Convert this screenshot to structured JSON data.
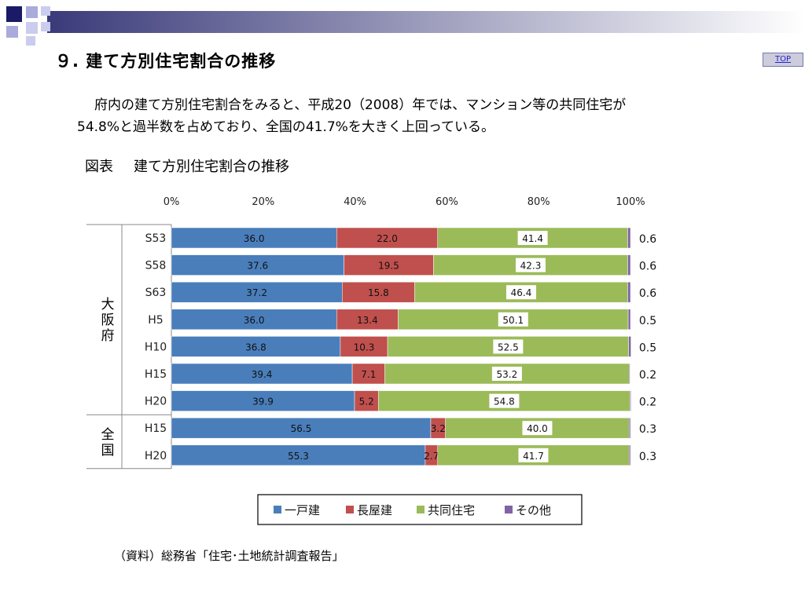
{
  "page": {
    "title": "９. 建て方別住宅割合の推移",
    "top_link": "TOP",
    "body_line1": "府内の建て方別住宅割合をみると、平成20（2008）年では、マンション等の共同住宅が",
    "body_line2": "54.8%と過半数を占めており、全国の41.7%を大きく上回っている。",
    "figure_label": "図表",
    "figure_title": "建て方別住宅割合の推移",
    "source": "（資料）総務省「住宅･土地統計調査報告」",
    "colors": {
      "deco_dark": "#1a1a66",
      "deco_light": "#aaaadd"
    }
  },
  "chart_data": {
    "type": "bar",
    "orientation": "horizontal",
    "stacked": true,
    "xlim": [
      0,
      100
    ],
    "x_tick_labels": [
      "0%",
      "20%",
      "40%",
      "60%",
      "80%",
      "100%"
    ],
    "groups": [
      {
        "label": "大阪府",
        "categories": [
          "S53",
          "S58",
          "S63",
          "H5",
          "H10",
          "H15",
          "H20"
        ]
      },
      {
        "label": "全国",
        "categories": [
          "H15",
          "H20"
        ]
      }
    ],
    "categories": [
      "S53",
      "S58",
      "S63",
      "H5",
      "H10",
      "H15",
      "H20",
      "H15",
      "H20"
    ],
    "series": [
      {
        "name": "一戸建",
        "color": "#4a7ebb",
        "values": [
          36.0,
          37.6,
          37.2,
          36.0,
          36.8,
          39.4,
          39.9,
          56.5,
          55.3
        ]
      },
      {
        "name": "長屋建",
        "color": "#c0504d",
        "values": [
          22.0,
          19.5,
          15.8,
          13.4,
          10.3,
          7.1,
          5.2,
          3.2,
          2.7
        ]
      },
      {
        "name": "共同住宅",
        "color": "#9bbb59",
        "values": [
          41.4,
          42.3,
          46.4,
          50.1,
          52.5,
          53.2,
          54.8,
          40.0,
          41.7
        ]
      },
      {
        "name": "その他",
        "color": "#8064a2",
        "values": [
          0.6,
          0.6,
          0.6,
          0.5,
          0.5,
          0.2,
          0.2,
          0.3,
          0.3
        ]
      }
    ],
    "legend_position": "bottom",
    "grid": false
  }
}
